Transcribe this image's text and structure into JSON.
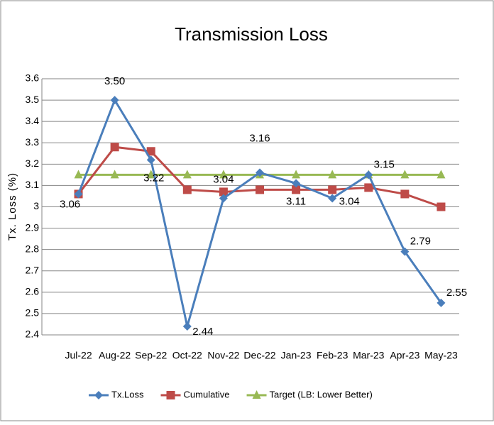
{
  "chart_data": {
    "type": "line",
    "title": "Transmission Loss",
    "y_label": "Tx. Loss (%)",
    "categories": [
      "Jul-22",
      "Aug-22",
      "Sep-22",
      "Oct-22",
      "Nov-22",
      "Dec-22",
      "Jan-23",
      "Feb-23",
      "Mar-23",
      "Apr-23",
      "May-23"
    ],
    "series": [
      {
        "name": "Tx.Loss",
        "color": "#4a7ebb",
        "marker": "diamond",
        "values": [
          3.06,
          3.5,
          3.22,
          2.44,
          3.04,
          3.16,
          3.11,
          3.04,
          3.15,
          2.79,
          2.55
        ],
        "value_labels": [
          "3.06",
          "3.50",
          "3.22",
          "2.44",
          "3.04",
          "3.16",
          "3.11",
          "3.04",
          "3.15",
          "2.79",
          "2.55"
        ]
      },
      {
        "name": "Cumulative",
        "color": "#be4b48",
        "marker": "square",
        "values": [
          3.06,
          3.28,
          3.26,
          3.08,
          3.07,
          3.08,
          3.08,
          3.08,
          3.09,
          3.06,
          3.0
        ]
      },
      {
        "name": "Target (LB: Lower Better)",
        "color": "#98b954",
        "marker": "triangle",
        "values": [
          3.15,
          3.15,
          3.15,
          3.15,
          3.15,
          3.15,
          3.15,
          3.15,
          3.15,
          3.15,
          3.15
        ]
      }
    ],
    "ylim": [
      2.4,
      3.6
    ],
    "yticks": [
      2.4,
      2.5,
      2.6,
      2.7,
      2.8,
      2.9,
      3,
      3.1,
      3.2,
      3.3,
      3.4,
      3.5,
      3.6
    ],
    "grid": true,
    "legend": "bottom"
  }
}
